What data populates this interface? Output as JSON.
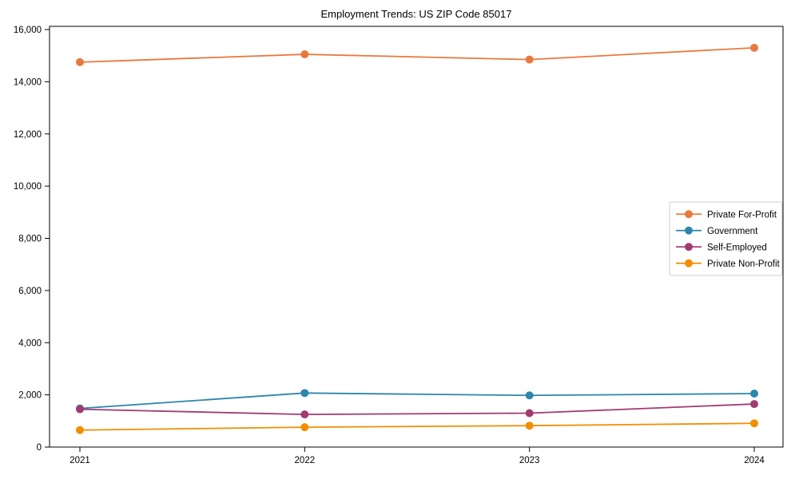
{
  "figure": {
    "background_color": "#ffffff",
    "axis_color": "#000000",
    "legend_border_color": "#cccccc"
  },
  "chart_data": {
    "type": "line",
    "title": "Employment Trends: US ZIP Code 85017",
    "x": [
      2021,
      2022,
      2023,
      2024
    ],
    "xticklabels": [
      "2021",
      "2022",
      "2023",
      "2024"
    ],
    "series": [
      {
        "name": "Private For-Profit",
        "color": "#e8793e",
        "values": [
          14750,
          15050,
          14850,
          15300
        ]
      },
      {
        "name": "Government",
        "color": "#2e86ab",
        "values": [
          1480,
          2070,
          1980,
          2050
        ]
      },
      {
        "name": "Self-Employed",
        "color": "#a23b72",
        "values": [
          1450,
          1250,
          1300,
          1650
        ]
      },
      {
        "name": "Private Non-Profit",
        "color": "#f18f01",
        "values": [
          650,
          760,
          820,
          910
        ]
      }
    ],
    "xlabel": "",
    "ylabel": "",
    "ylim": [
      0,
      16000
    ],
    "yticks": [
      0,
      2000,
      4000,
      6000,
      8000,
      10000,
      12000,
      14000,
      16000
    ],
    "ytick_format": "thousands-comma",
    "grid": false,
    "marker": "circle",
    "legend_position": "center-right"
  }
}
